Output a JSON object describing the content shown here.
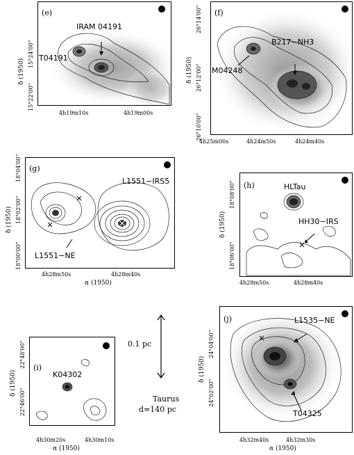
{
  "panels": {
    "e": {
      "label": "(e)",
      "sources": [
        "IRAM 04191",
        "T04191"
      ],
      "xticks": [
        "4h19m10s",
        "4h19m00s"
      ],
      "yticks": [
        "15°24'00\"",
        "15°22'00\""
      ],
      "ylabel": "δ (1950)"
    },
    "f": {
      "label": "(f)",
      "sources": [
        "B217−NH3",
        "M04248"
      ],
      "xticks": [
        "4h25m00s",
        "4h24m50s",
        "4h24m40s"
      ],
      "yticks": [
        "26°14'00\"",
        "26°12'00\"",
        "26°10'00\""
      ],
      "ylabel": "δ (1950)"
    },
    "g": {
      "label": "(g)",
      "sources": [
        "L1551−IRS5",
        "L1551−NE"
      ],
      "xticks": [
        "4h28m50s",
        "4h28m40s"
      ],
      "yticks": [
        "18°04'00\"",
        "18°02'00\"",
        "18°00'00\""
      ],
      "ylabel": "δ (1950)",
      "xlabel": "α (1950)"
    },
    "h": {
      "label": "(h)",
      "sources": [
        "HLTau",
        "HH30−IRS"
      ],
      "xticks": [
        "4h28m50s",
        "4h28m40s"
      ],
      "yticks": [
        "18°08'00\"",
        "18°06'00\""
      ],
      "ylabel": "δ (1950)"
    },
    "i": {
      "label": "(i)",
      "sources": [
        "K04302"
      ],
      "xticks": [
        "4h30m20s",
        "4h30m10s"
      ],
      "yticks": [
        "22°48'00\"",
        "22°46'00\""
      ],
      "ylabel": "δ (1950)",
      "xlabel": "α (1950)"
    },
    "j": {
      "label": "(j)",
      "sources": [
        "L1535−NE",
        "T04325"
      ],
      "xticks": [
        "4h32m40s",
        "4h32m30s"
      ],
      "yticks": [
        "24°04'00\"",
        "24°02'00\""
      ],
      "ylabel": "δ (1950)",
      "xlabel": "α (1950)"
    }
  },
  "scale": {
    "length": "0.1 pc",
    "region": "Taurus",
    "distance": "d=140 pc"
  }
}
